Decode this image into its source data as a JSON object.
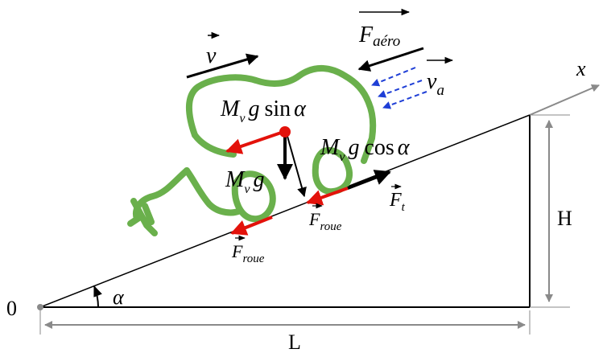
{
  "labels": {
    "origin": "0",
    "angle": "α",
    "length": "L",
    "height": "H",
    "axis_x": "x",
    "velocity": "v",
    "aero_force": "F",
    "aero_sub": "aéro",
    "air_velocity": "v",
    "air_sub": "a",
    "mass_M": "M",
    "mass_sub": "v",
    "gravity_g": "g",
    "sin_text": "sin",
    "cos_text": "cos",
    "alpha": "α",
    "traction_F": "F",
    "traction_sub": "t",
    "wheel_F": "F",
    "wheel_sub": "roue"
  },
  "colors": {
    "car": "#6ab04c",
    "red_force": "#e3120b",
    "air_arrow": "#1f3fd6",
    "axis_gray": "#8a8a8a",
    "black": "#000000"
  }
}
